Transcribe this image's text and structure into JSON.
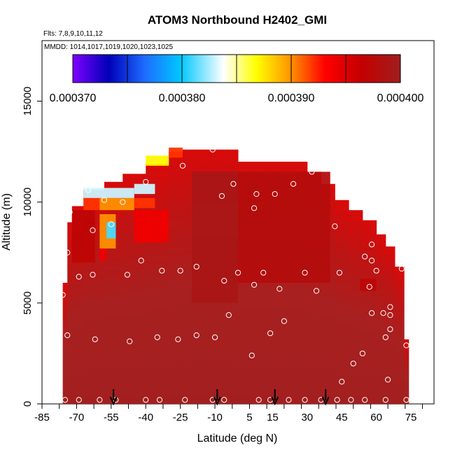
{
  "chart_data": {
    "type": "heatmap",
    "title": "ATOM3 Northbound H2402_GMI",
    "flights_note": "Flts: 7,8,9,10,11,12",
    "dates_note": "MMDD: 1014,1017,1019,1020,1023,1025",
    "xlabel": "Latitude (deg N)",
    "ylabel": "Altitude (m)",
    "xlim": [
      -85,
      85
    ],
    "ylim": [
      0,
      18000
    ],
    "xticks": [
      -85,
      -70,
      -55,
      -40,
      -25,
      -10,
      5,
      15,
      30,
      45,
      60,
      75
    ],
    "xtick_labels": [
      "-85",
      "-70",
      "-55",
      "-40",
      "-25",
      "-10",
      "5",
      "15",
      "30",
      "45",
      "60",
      "75"
    ],
    "yticks": [
      0,
      5000,
      10000,
      15000
    ],
    "ytick_labels": [
      "0",
      "5000",
      "10000",
      "15000"
    ],
    "colorbar": {
      "min": 0.00037,
      "max": 0.0004,
      "ticks": [
        0.00037,
        0.00038,
        0.00039,
        0.0004
      ],
      "tick_labels": [
        "0.000370",
        "0.000380",
        "0.000390",
        "0.000400"
      ],
      "colors": [
        "#7f00ff",
        "#0000b8",
        "#1e6cff",
        "#00c8ff",
        "#ffffff",
        "#ffff00",
        "#ff9900",
        "#ff0000",
        "#c40000",
        "#a01e1e"
      ]
    },
    "profile_markers_lat": [
      -54,
      -9,
      16,
      38
    ],
    "columns": [
      {
        "lat": [
          -76,
          -74
        ],
        "top": 6000,
        "low": "dark"
      },
      {
        "lat": [
          -74,
          -72
        ],
        "top": 9000,
        "low": "dark"
      },
      {
        "lat": [
          -72,
          -67
        ],
        "top": 9800,
        "low": "dark"
      },
      {
        "lat": [
          -67,
          -58
        ],
        "top": 10600,
        "low": "dark"
      },
      {
        "lat": [
          -58,
          -50
        ],
        "top": 11000,
        "low": "dark"
      },
      {
        "lat": [
          -50,
          -40
        ],
        "top": 11400,
        "low": "dark"
      },
      {
        "lat": [
          -40,
          -30
        ],
        "top": 11900,
        "low": "dark"
      },
      {
        "lat": [
          -30,
          -24
        ],
        "top": 12500,
        "low": "dark"
      },
      {
        "lat": [
          -24,
          0
        ],
        "top": 12600,
        "low": "dark"
      },
      {
        "lat": [
          0,
          30
        ],
        "top": 12000,
        "low": "dark"
      },
      {
        "lat": [
          30,
          36
        ],
        "top": 11500,
        "low": "dark"
      },
      {
        "lat": [
          36,
          42
        ],
        "top": 10900,
        "low": "dark"
      },
      {
        "lat": [
          42,
          48
        ],
        "top": 10100,
        "low": "dark"
      },
      {
        "lat": [
          48,
          54
        ],
        "top": 9600,
        "low": "dark"
      },
      {
        "lat": [
          54,
          60
        ],
        "top": 9100,
        "low": "dark"
      },
      {
        "lat": [
          60,
          64
        ],
        "top": 8400,
        "low": "dark"
      },
      {
        "lat": [
          64,
          68
        ],
        "top": 7800,
        "low": "dark"
      },
      {
        "lat": [
          68,
          72
        ],
        "top": 6800,
        "low": "dark"
      },
      {
        "lat": [
          72,
          74
        ],
        "top": 3200,
        "low": "dark"
      }
    ],
    "features": [
      {
        "lat": [
          -67,
          -45
        ],
        "alt": [
          10200,
          10700
        ],
        "value": 0.000383
      },
      {
        "lat": [
          -45,
          -36
        ],
        "alt": [
          10400,
          10900
        ],
        "value": 0.000383
      },
      {
        "lat": [
          -67,
          -60
        ],
        "alt": [
          9600,
          10200
        ],
        "value": 0.000392
      },
      {
        "lat": [
          -60,
          -45
        ],
        "alt": [
          9600,
          10200
        ],
        "value": 0.00039
      },
      {
        "lat": [
          -45,
          -36
        ],
        "alt": [
          9700,
          10200
        ],
        "value": 0.000392
      },
      {
        "lat": [
          -40,
          -30
        ],
        "alt": [
          11800,
          12300
        ],
        "value": 0.000387
      },
      {
        "lat": [
          -30,
          -24
        ],
        "alt": [
          12200,
          12700
        ],
        "value": 0.000392
      },
      {
        "lat": [
          -60,
          -53
        ],
        "alt": [
          7700,
          9400
        ],
        "value": 0.00039
      },
      {
        "lat": [
          -57,
          -53
        ],
        "alt": [
          8200,
          9000
        ],
        "value": 0.000381
      },
      {
        "lat": [
          -60,
          -57
        ],
        "alt": [
          7100,
          7700
        ],
        "value": 0.000394
      },
      {
        "lat": [
          -45,
          -30
        ],
        "alt": [
          8000,
          9600
        ],
        "value": 0.000394
      },
      {
        "lat": [
          -72,
          -62
        ],
        "alt": [
          7000,
          9600
        ],
        "value": 0.000397
      },
      {
        "lat": [
          -20,
          0
        ],
        "alt": [
          5000,
          11500
        ],
        "value": 0.000399
      },
      {
        "lat": [
          0,
          40
        ],
        "alt": [
          6000,
          11500
        ],
        "value": 0.000398
      },
      {
        "lat": [
          53,
          60
        ],
        "alt": [
          5600,
          6200
        ],
        "value": 0.000397
      }
    ],
    "sample_points": [
      {
        "lat": -76,
        "alt": 5400
      },
      {
        "lat": -74,
        "alt": 7500
      },
      {
        "lat": -73,
        "alt": 9500
      },
      {
        "lat": -74,
        "alt": 3400
      },
      {
        "lat": -69,
        "alt": 6300
      },
      {
        "lat": -65,
        "alt": 10600
      },
      {
        "lat": -63,
        "alt": 8600
      },
      {
        "lat": -63,
        "alt": 6400
      },
      {
        "lat": -62,
        "alt": 3200
      },
      {
        "lat": -58,
        "alt": 10100
      },
      {
        "lat": -55,
        "alt": 8900
      },
      {
        "lat": -50,
        "alt": 10000
      },
      {
        "lat": -48,
        "alt": 6400
      },
      {
        "lat": -47,
        "alt": 3100
      },
      {
        "lat": -42,
        "alt": 7100
      },
      {
        "lat": -40,
        "alt": 11000
      },
      {
        "lat": -35,
        "alt": 3300
      },
      {
        "lat": -33,
        "alt": 6600
      },
      {
        "lat": -24,
        "alt": 11800
      },
      {
        "lat": -25,
        "alt": 6600
      },
      {
        "lat": -26,
        "alt": 3200
      },
      {
        "lat": -18,
        "alt": 6800
      },
      {
        "lat": -18,
        "alt": 3400
      },
      {
        "lat": -11,
        "alt": 12600
      },
      {
        "lat": -10,
        "alt": 3300
      },
      {
        "lat": -7,
        "alt": 10300
      },
      {
        "lat": -6,
        "alt": 6100
      },
      {
        "lat": -4,
        "alt": 4400
      },
      {
        "lat": -2,
        "alt": 10900
      },
      {
        "lat": 0,
        "alt": 6500
      },
      {
        "lat": 7,
        "alt": 9700
      },
      {
        "lat": 8,
        "alt": 10400
      },
      {
        "lat": 7,
        "alt": 5900
      },
      {
        "lat": 6,
        "alt": 2400
      },
      {
        "lat": 11,
        "alt": 6500
      },
      {
        "lat": 14,
        "alt": 3500
      },
      {
        "lat": 16,
        "alt": 10400
      },
      {
        "lat": 18,
        "alt": 5700
      },
      {
        "lat": 20,
        "alt": 4100
      },
      {
        "lat": 24,
        "alt": 10900
      },
      {
        "lat": 29,
        "alt": 6500
      },
      {
        "lat": 32,
        "alt": 11500
      },
      {
        "lat": 34,
        "alt": 5600
      },
      {
        "lat": 42,
        "alt": 8800
      },
      {
        "lat": 44,
        "alt": 6500
      },
      {
        "lat": 45,
        "alt": 1100
      },
      {
        "lat": 50,
        "alt": 2000
      },
      {
        "lat": 54,
        "alt": 2500
      },
      {
        "lat": 55,
        "alt": 7300
      },
      {
        "lat": 57,
        "alt": 5800
      },
      {
        "lat": 58,
        "alt": 7900
      },
      {
        "lat": 58,
        "alt": 7100
      },
      {
        "lat": 58,
        "alt": 4500
      },
      {
        "lat": 60,
        "alt": 6600
      },
      {
        "lat": 63,
        "alt": 4500
      },
      {
        "lat": 64,
        "alt": 3300
      },
      {
        "lat": 65,
        "alt": 1200
      },
      {
        "lat": 66,
        "alt": 4800
      },
      {
        "lat": 66,
        "alt": 3700
      },
      {
        "lat": 66,
        "alt": 4400
      },
      {
        "lat": 67,
        "alt": 8400
      },
      {
        "lat": 71,
        "alt": 6700
      },
      {
        "lat": 73,
        "alt": 2900
      },
      {
        "lat": -75,
        "alt": 200
      },
      {
        "lat": -69,
        "alt": 200
      },
      {
        "lat": -60,
        "alt": 200
      },
      {
        "lat": -53,
        "alt": 200
      },
      {
        "lat": -40,
        "alt": 200
      },
      {
        "lat": -34,
        "alt": 200
      },
      {
        "lat": -23,
        "alt": 200
      },
      {
        "lat": -11,
        "alt": 200
      },
      {
        "lat": -6,
        "alt": 200
      },
      {
        "lat": 9,
        "alt": 200
      },
      {
        "lat": 14,
        "alt": 200
      },
      {
        "lat": 22,
        "alt": 200
      },
      {
        "lat": 29,
        "alt": 200
      },
      {
        "lat": 36,
        "alt": 200
      },
      {
        "lat": 43,
        "alt": 200
      },
      {
        "lat": 49,
        "alt": 200
      },
      {
        "lat": 55,
        "alt": 200
      },
      {
        "lat": 64,
        "alt": 200
      },
      {
        "lat": 73,
        "alt": 200
      }
    ]
  }
}
